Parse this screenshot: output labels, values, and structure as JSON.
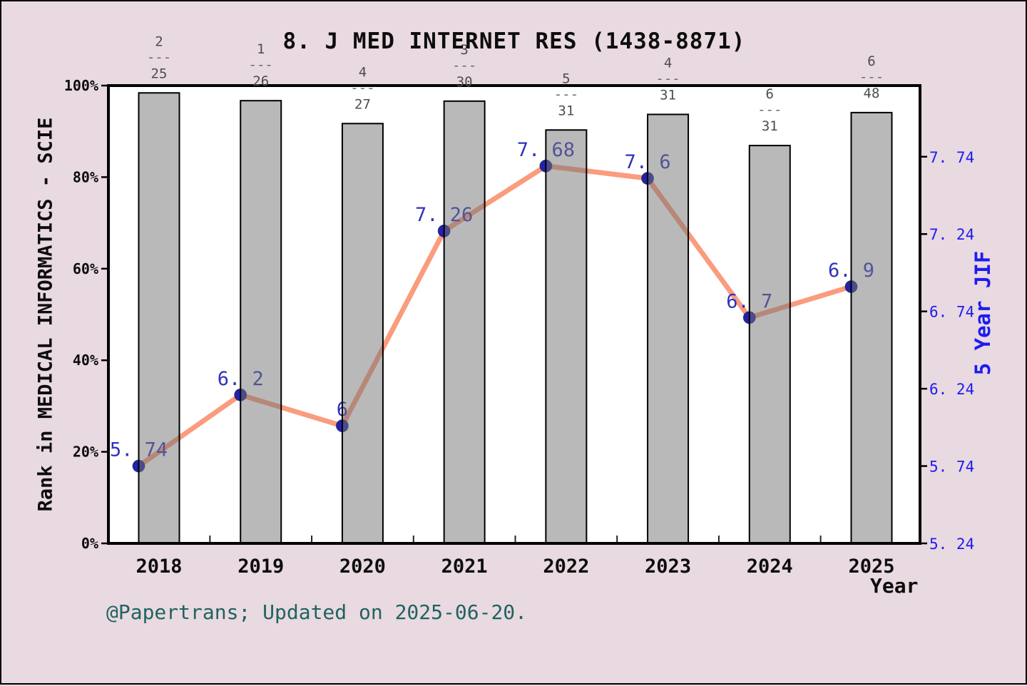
{
  "title": "8. J MED INTERNET RES (1438-8871)",
  "footer": {
    "text": "@Papertrans; Updated on 2025-06-20.",
    "color": "#1f6360"
  },
  "chart_data": {
    "type": "bar+line",
    "title": "8. J MED INTERNET RES (1438-8871)",
    "x_categories": [
      "2018",
      "2019",
      "2020",
      "2021",
      "2022",
      "2023",
      "2024",
      "2025"
    ],
    "xlabel": "Year",
    "left_axis": {
      "label": "Rank in MEDICAL INFORMATICS - SCIE",
      "range": [
        0,
        100
      ],
      "ticks": [
        {
          "value": 0,
          "label": "0%"
        },
        {
          "value": 20,
          "label": "20%"
        },
        {
          "value": 40,
          "label": "40%"
        },
        {
          "value": 60,
          "label": "60%"
        },
        {
          "value": 80,
          "label": "80%"
        },
        {
          "value": 100,
          "label": "100%"
        }
      ]
    },
    "right_axis": {
      "label": "5 Year JIF",
      "range": [
        5.24,
        8.2
      ],
      "ticks": [
        {
          "value": 5.24,
          "label": "5. 24"
        },
        {
          "value": 5.74,
          "label": "5. 74"
        },
        {
          "value": 6.24,
          "label": "6. 24"
        },
        {
          "value": 6.74,
          "label": "6. 74"
        },
        {
          "value": 7.24,
          "label": "7. 24"
        },
        {
          "value": 7.74,
          "label": "7. 74"
        }
      ]
    },
    "bars": {
      "name": "Rank in MEDICAL INFORMATICS - SCIE (percentile)",
      "values_pct": [
        98.4,
        96.7,
        91.7,
        96.6,
        90.3,
        93.7,
        86.9,
        94.1
      ],
      "fraction_separator": "---",
      "rank_fractions": [
        {
          "numerator": "2",
          "denominator": "25"
        },
        {
          "numerator": "1",
          "denominator": "26"
        },
        {
          "numerator": "4",
          "denominator": "27"
        },
        {
          "numerator": "3",
          "denominator": "30"
        },
        {
          "numerator": "5",
          "denominator": "31"
        },
        {
          "numerator": "4",
          "denominator": "31"
        },
        {
          "numerator": "6",
          "denominator": "31"
        },
        {
          "numerator": "6",
          "denominator": "48"
        }
      ]
    },
    "line": {
      "name": "5 Year JIF",
      "values": [
        5.74,
        6.2,
        6.0,
        7.26,
        7.68,
        7.6,
        6.7,
        6.9
      ],
      "point_labels": [
        "5. 74",
        "6. 2",
        "6",
        "7. 26",
        "7. 68",
        "7. 6",
        "6. 7",
        "6. 9"
      ]
    },
    "legend": "none",
    "grid": "off",
    "colors": {
      "background": "#e9d9e1",
      "plot_background": "#ffffff",
      "bar_fill": "#b9b9b9",
      "bar_edge": "#000000",
      "line": "#fa9c7d",
      "marker": "#2222aa",
      "point_label": "#3232bd",
      "right_axis": "#1c1cee",
      "fraction_label": "#4d4d4d",
      "footer": "#1f6360",
      "text": "#0d0d0d"
    }
  }
}
